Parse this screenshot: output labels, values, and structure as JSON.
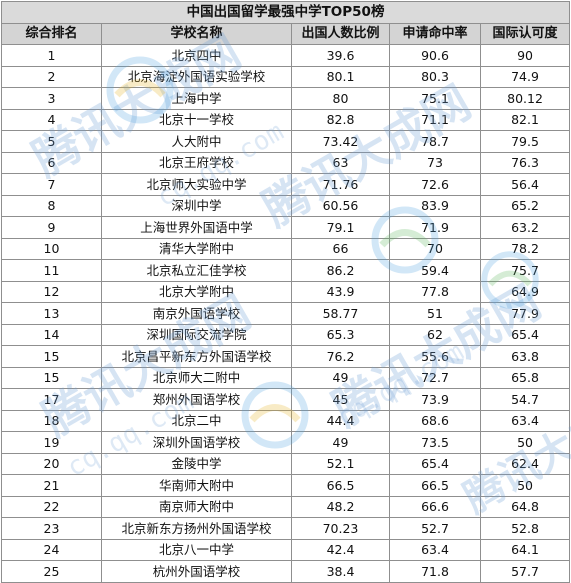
{
  "table": {
    "title": "中国出国留学最强中学TOP50榜",
    "headers": [
      "综合排名",
      "学校名称",
      "出国人数比例",
      "申请命中率",
      "国际认可度"
    ],
    "rows": [
      [
        "1",
        "北京四中",
        "39.6",
        "90.6",
        "90"
      ],
      [
        "2",
        "北京海淀外国语实验学校",
        "80.1",
        "80.3",
        "74.9"
      ],
      [
        "3",
        "上海中学",
        "80",
        "75.1",
        "80.12"
      ],
      [
        "4",
        "北京十一学校",
        "82.8",
        "71.1",
        "82.1"
      ],
      [
        "5",
        "人大附中",
        "73.42",
        "78.7",
        "79.5"
      ],
      [
        "6",
        "北京王府学校",
        "63",
        "73",
        "76.3"
      ],
      [
        "7",
        "北京师大实验中学",
        "71.76",
        "72.6",
        "56.4"
      ],
      [
        "8",
        "深圳中学",
        "60.56",
        "83.9",
        "65.2"
      ],
      [
        "9",
        "上海世界外国语中学",
        "79.1",
        "71.9",
        "63.2"
      ],
      [
        "10",
        "清华大学附中",
        "66",
        "70",
        "78.2"
      ],
      [
        "11",
        "北京私立汇佳学校",
        "86.2",
        "59.4",
        "75.7"
      ],
      [
        "12",
        "北京大学附中",
        "43.9",
        "77.8",
        "64.9"
      ],
      [
        "13",
        "南京外国语学校",
        "58.77",
        "51",
        "77.9"
      ],
      [
        "14",
        "深圳国际交流学院",
        "65.3",
        "62",
        "65.4"
      ],
      [
        "15",
        "北京昌平新东方外国语学校",
        "76.2",
        "55.6",
        "63.8"
      ],
      [
        "15",
        "北京师大二附中",
        "49",
        "72.7",
        "65.8"
      ],
      [
        "17",
        "郑州外国语学校",
        "45",
        "73.9",
        "54.7"
      ],
      [
        "18",
        "北京二中",
        "44.4",
        "68.6",
        "63.4"
      ],
      [
        "19",
        "深圳外国语学校",
        "49",
        "73.5",
        "50"
      ],
      [
        "20",
        "金陵中学",
        "52.1",
        "65.4",
        "62.4"
      ],
      [
        "21",
        "华南师大附中",
        "66.5",
        "66.5",
        "50"
      ],
      [
        "22",
        "南京师大附中",
        "48.2",
        "66.6",
        "64.8"
      ],
      [
        "23",
        "北京新东方扬州外国语学校",
        "70.23",
        "52.7",
        "52.8"
      ],
      [
        "24",
        "北京八一中学",
        "42.4",
        "63.4",
        "64.1"
      ],
      [
        "25",
        "杭州外国语学校",
        "38.4",
        "71.8",
        "57.7"
      ]
    ]
  },
  "watermark": {
    "text": "腾讯大成网",
    "url": "cq.qq.com",
    "color": "#6fa0d6"
  }
}
